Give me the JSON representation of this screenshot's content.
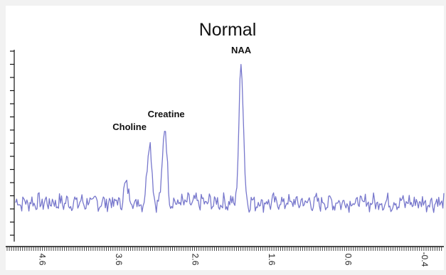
{
  "chart_data": {
    "type": "line",
    "title": "Normal",
    "xlabel": "",
    "ylabel": "",
    "x_reversed": true,
    "xlim": [
      4.95,
      -0.65
    ],
    "ylim": [
      -20,
      100
    ],
    "x_ticks": [
      {
        "value": 4.6,
        "label": "4.6"
      },
      {
        "value": 3.6,
        "label": "3.6"
      },
      {
        "value": 2.6,
        "label": "2.6"
      },
      {
        "value": 1.6,
        "label": "1.6"
      },
      {
        "value": 0.6,
        "label": "0.6"
      },
      {
        "value": -0.4,
        "label": "-0.4"
      }
    ],
    "series": [
      {
        "color": "#7777cc",
        "peaks": [
          {
            "x": 3.5,
            "height": 12
          },
          {
            "x": 3.2,
            "height": 40
          },
          {
            "x": 3.0,
            "height": 48
          },
          {
            "x": 2.0,
            "height": 88
          }
        ]
      }
    ],
    "annotations": [
      {
        "text": "Choline",
        "x": 3.2
      },
      {
        "text": "Creatine",
        "x": 3.0
      },
      {
        "text": "NAA",
        "x": 2.0
      }
    ],
    "grid": false,
    "legend": "none"
  },
  "colors": {
    "line": "#7777cc",
    "axis": "#111111",
    "background": "#ffffff"
  }
}
